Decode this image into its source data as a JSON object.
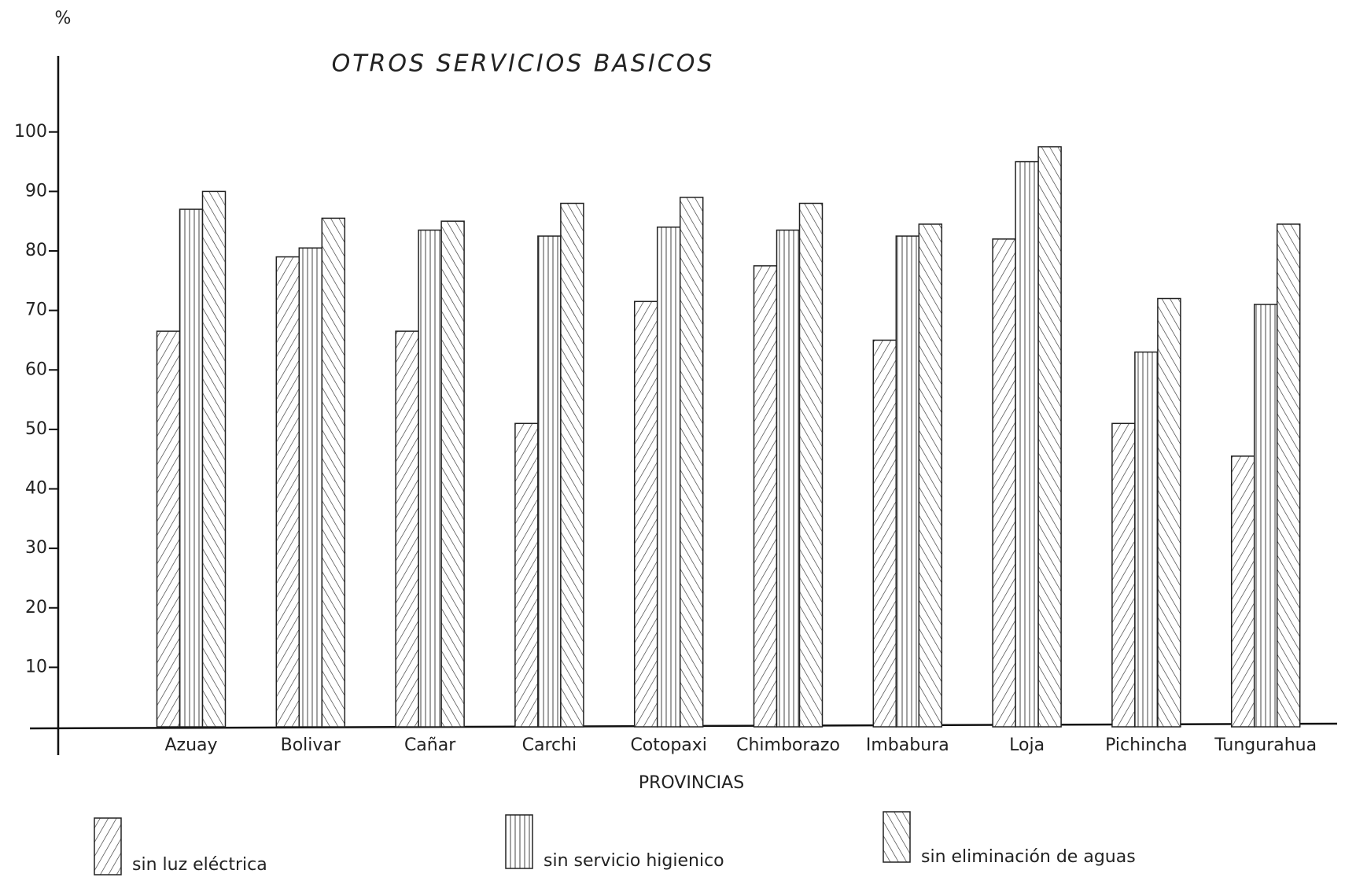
{
  "chart_data": {
    "type": "bar",
    "title": "OTROS SERVICIOS BASICOS",
    "y_label": "%",
    "x_label": "PROVINCIAS",
    "categories": [
      "Azuay",
      "Bolivar",
      "Cañar",
      "Carchi",
      "Cotopaxi",
      "Chimborazo",
      "Imbabura",
      "Loja",
      "Pichincha",
      "Tungurahua"
    ],
    "series": [
      {
        "name": "sin luz eléctrica",
        "color": "#222222",
        "hatch": "forward",
        "values": [
          66.5,
          79,
          66.5,
          51,
          71.5,
          77.5,
          65,
          82,
          51,
          45.5
        ]
      },
      {
        "name": "sin servicio higienico",
        "color": "#222222",
        "hatch": "vertical",
        "values": [
          87,
          80.5,
          83.5,
          82.5,
          84,
          83.5,
          82.5,
          95,
          63,
          71
        ]
      },
      {
        "name": "sin eliminación de aguas",
        "color": "#222222",
        "hatch": "backward",
        "values": [
          90,
          85.5,
          85,
          88,
          89,
          88,
          84.5,
          97.5,
          72,
          84.5
        ]
      }
    ],
    "ylim": [
      0,
      112
    ],
    "yticks": [
      10,
      20,
      30,
      40,
      50,
      60,
      70,
      80,
      90,
      100
    ],
    "grid": false
  }
}
